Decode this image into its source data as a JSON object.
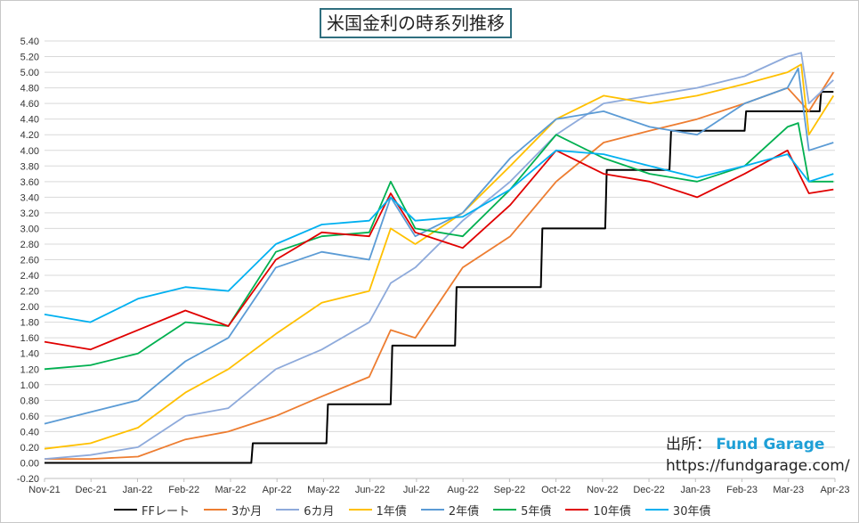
{
  "chart_data": {
    "type": "line",
    "title": "米国金利の時系列推移",
    "x_ticks": [
      "Nov-21",
      "Dec-21",
      "Jan-22",
      "Feb-22",
      "Mar-22",
      "Apr-22",
      "May-22",
      "Jun-22",
      "Jul-22",
      "Aug-22",
      "Sep-22",
      "Oct-22",
      "Nov-22",
      "Dec-22",
      "Jan-23",
      "Feb-23",
      "Mar-23",
      "Apr-23"
    ],
    "y_ticks": [
      "-0.20",
      "0.00",
      "0.20",
      "0.40",
      "0.60",
      "0.80",
      "1.00",
      "1.20",
      "1.40",
      "1.60",
      "1.80",
      "2.00",
      "2.20",
      "2.40",
      "2.60",
      "2.80",
      "3.00",
      "3.20",
      "3.40",
      "3.60",
      "3.80",
      "4.00",
      "4.20",
      "4.40",
      "4.60",
      "4.80",
      "5.00",
      "5.20",
      "5.40"
    ],
    "ylim": [
      -0.2,
      5.4
    ],
    "xlim": [
      "2021-11-01",
      "2023-04-01"
    ],
    "grid": "horizontal",
    "legend_position": "bottom",
    "series": [
      {
        "name": "FFレート",
        "color": "#000000",
        "x": [
          "2021-11-01",
          "2022-03-16",
          "2022-03-17",
          "2022-05-04",
          "2022-05-05",
          "2022-06-15",
          "2022-06-16",
          "2022-07-27",
          "2022-07-28",
          "2022-09-21",
          "2022-09-22",
          "2022-11-02",
          "2022-11-03",
          "2022-12-14",
          "2022-12-15",
          "2023-02-01",
          "2023-02-02",
          "2023-03-22",
          "2023-03-23",
          "2023-03-31"
        ],
        "values": [
          0.0,
          0.0,
          0.25,
          0.25,
          0.75,
          0.75,
          1.5,
          1.5,
          2.25,
          2.25,
          3.0,
          3.0,
          3.75,
          3.75,
          4.25,
          4.25,
          4.5,
          4.5,
          4.75,
          4.75
        ]
      },
      {
        "name": "3か月",
        "color": "#ed7d31",
        "x": [
          "2021-11-01",
          "2021-12-01",
          "2022-01-01",
          "2022-02-01",
          "2022-03-01",
          "2022-04-01",
          "2022-05-01",
          "2022-06-01",
          "2022-06-15",
          "2022-07-01",
          "2022-08-01",
          "2022-09-01",
          "2022-10-01",
          "2022-11-01",
          "2022-12-01",
          "2023-01-01",
          "2023-02-01",
          "2023-03-01",
          "2023-03-15",
          "2023-03-31"
        ],
        "values": [
          0.05,
          0.05,
          0.08,
          0.3,
          0.4,
          0.6,
          0.85,
          1.1,
          1.7,
          1.6,
          2.5,
          2.9,
          3.6,
          4.1,
          4.25,
          4.4,
          4.6,
          4.8,
          4.5,
          5.0
        ]
      },
      {
        "name": "6カ月",
        "color": "#8eaadb",
        "x": [
          "2021-11-01",
          "2021-12-01",
          "2022-01-01",
          "2022-02-01",
          "2022-03-01",
          "2022-04-01",
          "2022-05-01",
          "2022-06-01",
          "2022-06-15",
          "2022-07-01",
          "2022-08-01",
          "2022-09-01",
          "2022-10-01",
          "2022-11-01",
          "2022-12-01",
          "2023-01-01",
          "2023-02-01",
          "2023-03-01",
          "2023-03-10",
          "2023-03-15",
          "2023-03-31"
        ],
        "values": [
          0.05,
          0.1,
          0.2,
          0.6,
          0.7,
          1.2,
          1.45,
          1.8,
          2.3,
          2.5,
          3.1,
          3.6,
          4.2,
          4.6,
          4.7,
          4.8,
          4.95,
          5.2,
          5.25,
          4.6,
          4.9
        ]
      },
      {
        "name": "1年債",
        "color": "#ffc000",
        "x": [
          "2021-11-01",
          "2021-12-01",
          "2022-01-01",
          "2022-02-01",
          "2022-03-01",
          "2022-04-01",
          "2022-05-01",
          "2022-06-01",
          "2022-06-15",
          "2022-07-01",
          "2022-08-01",
          "2022-09-01",
          "2022-10-01",
          "2022-11-01",
          "2022-12-01",
          "2023-01-01",
          "2023-02-01",
          "2023-03-01",
          "2023-03-10",
          "2023-03-15",
          "2023-03-31"
        ],
        "values": [
          0.18,
          0.25,
          0.45,
          0.9,
          1.2,
          1.65,
          2.05,
          2.2,
          3.0,
          2.8,
          3.2,
          3.8,
          4.4,
          4.7,
          4.6,
          4.7,
          4.85,
          5.0,
          5.1,
          4.2,
          4.7
        ]
      },
      {
        "name": "2年債",
        "color": "#5b9bd5",
        "x": [
          "2021-11-01",
          "2021-12-01",
          "2022-01-01",
          "2022-02-01",
          "2022-03-01",
          "2022-04-01",
          "2022-05-01",
          "2022-06-01",
          "2022-06-15",
          "2022-07-01",
          "2022-08-01",
          "2022-09-01",
          "2022-10-01",
          "2022-11-01",
          "2022-12-01",
          "2023-01-01",
          "2023-02-01",
          "2023-03-01",
          "2023-03-08",
          "2023-03-15",
          "2023-03-31"
        ],
        "values": [
          0.5,
          0.65,
          0.8,
          1.3,
          1.6,
          2.5,
          2.7,
          2.6,
          3.4,
          2.9,
          3.2,
          3.9,
          4.4,
          4.5,
          4.3,
          4.2,
          4.6,
          4.8,
          5.05,
          4.0,
          4.1
        ]
      },
      {
        "name": "5年債",
        "color": "#00b050",
        "x": [
          "2021-11-01",
          "2021-12-01",
          "2022-01-01",
          "2022-02-01",
          "2022-03-01",
          "2022-04-01",
          "2022-05-01",
          "2022-06-01",
          "2022-06-15",
          "2022-07-01",
          "2022-08-01",
          "2022-09-01",
          "2022-10-01",
          "2022-11-01",
          "2022-12-01",
          "2023-01-01",
          "2023-02-01",
          "2023-03-01",
          "2023-03-08",
          "2023-03-15",
          "2023-03-31"
        ],
        "values": [
          1.2,
          1.25,
          1.4,
          1.8,
          1.75,
          2.7,
          2.9,
          2.95,
          3.6,
          3.0,
          2.9,
          3.5,
          4.2,
          3.9,
          3.7,
          3.6,
          3.8,
          4.3,
          4.35,
          3.6,
          3.6
        ]
      },
      {
        "name": "10年債",
        "color": "#e00000",
        "x": [
          "2021-11-01",
          "2021-12-01",
          "2022-01-01",
          "2022-02-01",
          "2022-03-01",
          "2022-04-01",
          "2022-05-01",
          "2022-06-01",
          "2022-06-15",
          "2022-07-01",
          "2022-08-01",
          "2022-09-01",
          "2022-10-01",
          "2022-11-01",
          "2022-12-01",
          "2023-01-01",
          "2023-02-01",
          "2023-03-01",
          "2023-03-15",
          "2023-03-31"
        ],
        "values": [
          1.55,
          1.45,
          1.7,
          1.95,
          1.75,
          2.6,
          2.95,
          2.9,
          3.45,
          2.95,
          2.75,
          3.3,
          4.0,
          3.7,
          3.6,
          3.4,
          3.7,
          4.0,
          3.45,
          3.5
        ]
      },
      {
        "name": "30年債",
        "color": "#00b0f0",
        "x": [
          "2021-11-01",
          "2021-12-01",
          "2022-01-01",
          "2022-02-01",
          "2022-03-01",
          "2022-04-01",
          "2022-05-01",
          "2022-06-01",
          "2022-06-15",
          "2022-07-01",
          "2022-08-01",
          "2022-09-01",
          "2022-10-01",
          "2022-11-01",
          "2022-12-01",
          "2023-01-01",
          "2023-02-01",
          "2023-03-01",
          "2023-03-15",
          "2023-03-31"
        ],
        "values": [
          1.9,
          1.8,
          2.1,
          2.25,
          2.2,
          2.8,
          3.05,
          3.1,
          3.4,
          3.1,
          3.15,
          3.5,
          4.0,
          3.95,
          3.8,
          3.65,
          3.8,
          3.95,
          3.6,
          3.7
        ]
      }
    ]
  },
  "credit": {
    "label": "出所：",
    "brand": "Fund Garage",
    "url": "https://fundgarage.com/"
  },
  "legend": [
    {
      "label": "FFレート",
      "color": "#000000"
    },
    {
      "label": "3か月",
      "color": "#ed7d31"
    },
    {
      "label": "6カ月",
      "color": "#8eaadb"
    },
    {
      "label": "1年債",
      "color": "#ffc000"
    },
    {
      "label": "2年債",
      "color": "#5b9bd5"
    },
    {
      "label": "5年債",
      "color": "#00b050"
    },
    {
      "label": "10年債",
      "color": "#e00000"
    },
    {
      "label": "30年債",
      "color": "#00b0f0"
    }
  ]
}
